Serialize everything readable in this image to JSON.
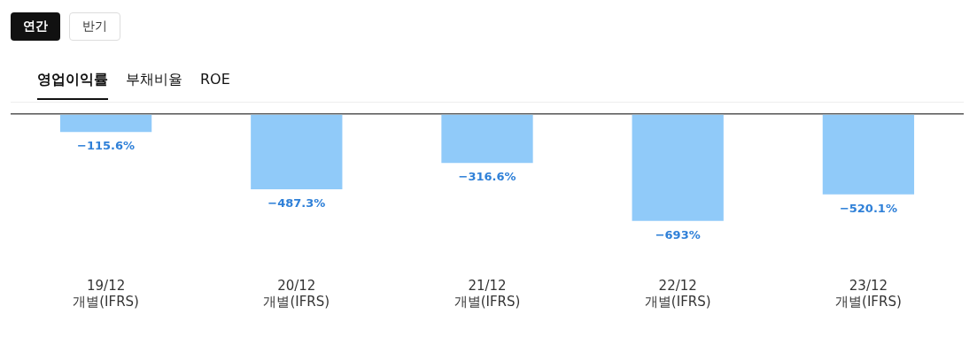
{
  "chart_data": {
    "type": "bar",
    "title": "영업이익률",
    "annotations": [
      "연간",
      "반기",
      "부채비율",
      "ROE"
    ],
    "categories": [
      "19/12\n개별(IFRS)",
      "20/12\n개별(IFRS)",
      "21/12\n개별(IFRS)",
      "22/12\n개별(IFRS)",
      "23/12\n개별(IFRS)"
    ],
    "values": [
      -115.6,
      -487.3,
      -316.6,
      -693,
      -520.1
    ],
    "value_labels": [
      "−115.6%",
      "−487.3%",
      "−316.6%",
      "−693%",
      "−520.1%"
    ],
    "color": "#90caf9",
    "grid": false,
    "legend": false
  }
}
